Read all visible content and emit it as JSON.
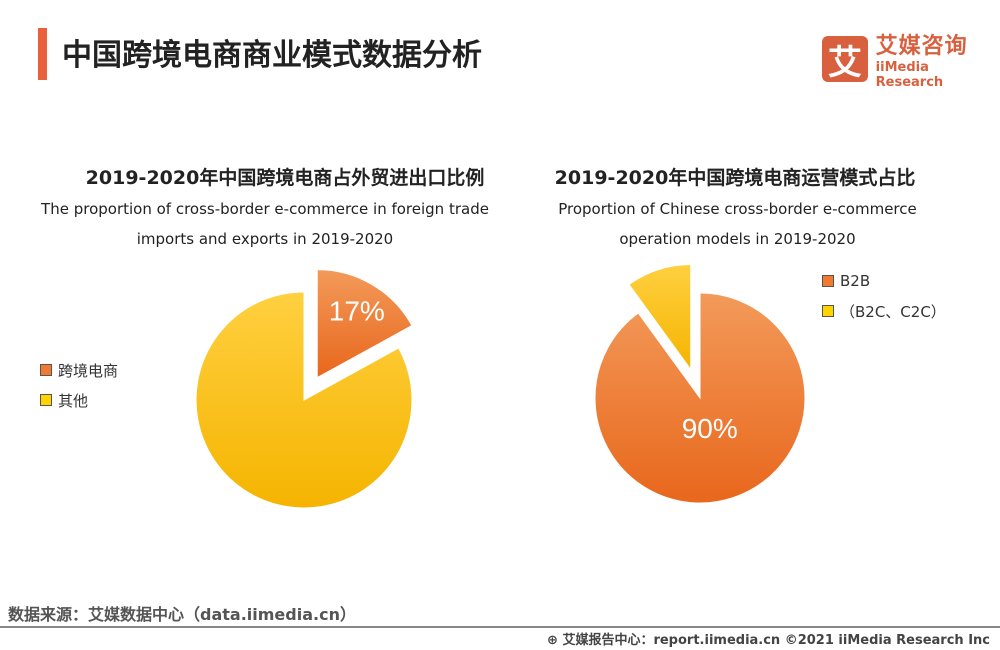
{
  "header": {
    "title": "中国跨境电商商业模式数据分析",
    "logo_mark": "艾",
    "logo_cn": "艾媒咨询",
    "logo_en": "iiMedia Research"
  },
  "chart_data": [
    {
      "type": "pie",
      "title": "2019-2020年中国跨境电商占外贸进出口比例",
      "subtitle_line1": "The proportion of cross-border e-commerce in foreign trade",
      "subtitle_line2": "imports and exports in 2019-2020",
      "labels": [
        "跨境电商",
        "其他"
      ],
      "values": [
        17,
        83
      ],
      "data_labels": [
        "17%",
        ""
      ],
      "colors": [
        "#f07a30",
        "#ffc20e"
      ],
      "exploded": [
        true,
        false
      ],
      "legend": "left"
    },
    {
      "type": "pie",
      "title": "2019-2020年中国跨境电商运营模式占比",
      "subtitle_line1": "Proportion of Chinese cross-border e-commerce",
      "subtitle_line2": "operation models in 2019-2020",
      "labels": [
        "B2B",
        "（B2C、C2C）"
      ],
      "values": [
        90,
        10
      ],
      "data_labels": [
        "90%",
        ""
      ],
      "colors": [
        "#f07a30",
        "#ffc20e"
      ],
      "exploded": [
        false,
        true
      ],
      "legend": "top-right"
    }
  ],
  "footer": {
    "source": "数据来源：艾媒数据中心（data.iimedia.cn）",
    "report": "艾媒报告中心：report.iimedia.cn   ©2021  iiMedia Research  Inc"
  }
}
